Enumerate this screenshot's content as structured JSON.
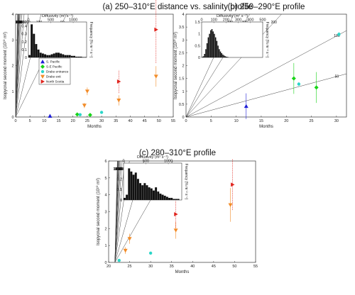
{
  "chart_data": [
    {
      "type": "scatter",
      "title": "(a) 250–310°E distance vs. salinity profile",
      "xlabel": "Months",
      "ylabel": "Isopycnal second moment (10¹⁰ m²)",
      "xlim": [
        0,
        55
      ],
      "ylim": [
        0,
        4
      ],
      "xticks": [
        "0",
        "5",
        "10",
        "15",
        "20",
        "25",
        "30",
        "35",
        "40",
        "45",
        "50",
        "55"
      ],
      "yticks": [
        "0",
        "1",
        "2",
        "3",
        "4"
      ],
      "diffusivity_contours": {
        "values": [
          50,
          100,
          200,
          300,
          400,
          500,
          600,
          700,
          800,
          900,
          1000,
          1100,
          1200,
          1300
        ],
        "labels": [
          "50",
          "100",
          "200",
          "300",
          "400",
          "500",
          "600",
          "700",
          "800",
          "900",
          "1000",
          "1100",
          "1200",
          "1300"
        ]
      },
      "legend": {
        "placement": "inside-left",
        "entries": [
          {
            "name": "S. Pacific",
            "color": "#1f1fd6",
            "marker": "triangle-up"
          },
          {
            "name": "S-E Pacific",
            "color": "#19d419",
            "marker": "diamond"
          },
          {
            "name": "Drake entrance",
            "color": "#2bd6c8",
            "marker": "circle"
          },
          {
            "name": "Drake exit",
            "color": "#f28c28",
            "marker": "triangle-down"
          },
          {
            "name": "North Scotia",
            "color": "#e0261f",
            "marker": "triangle-right"
          }
        ]
      },
      "series": [
        {
          "name": "S. Pacific",
          "color": "#1f1fd6",
          "marker": "triangle-up",
          "points": [
            {
              "x": 12,
              "y": 0.04,
              "err": 0.05
            }
          ]
        },
        {
          "name": "S-E Pacific",
          "color": "#19d419",
          "marker": "diamond",
          "points": [
            {
              "x": 21.5,
              "y": 0.1,
              "err": 0.05
            },
            {
              "x": 26,
              "y": 0.08,
              "err": 0.04
            }
          ]
        },
        {
          "name": "Drake entrance",
          "color": "#2bd6c8",
          "marker": "circle",
          "points": [
            {
              "x": 22.5,
              "y": 0.09,
              "err": 0.04
            },
            {
              "x": 30,
              "y": 0.18,
              "err": 0.05
            }
          ]
        },
        {
          "name": "Drake exit",
          "color": "#f28c28",
          "marker": "triangle-down",
          "points": [
            {
              "x": 24,
              "y": 0.45,
              "err": 0.1
            },
            {
              "x": 25,
              "y": 1.0,
              "err": 0.15
            },
            {
              "x": 36,
              "y": 0.65,
              "err": 0.2
            },
            {
              "x": 49,
              "y": 1.58,
              "err": 0.4
            }
          ]
        },
        {
          "name": "North Scotia",
          "color": "#e0261f",
          "marker": "triangle-right",
          "points": [
            {
              "x": 36,
              "y": 1.38,
              "err": 0.45
            },
            {
              "x": 49,
              "y": 3.4,
              "err": 1.3
            }
          ]
        }
      ],
      "inset": {
        "title": "Diffusivity (m² s⁻¹)",
        "top_ticks": [
          "0",
          "500",
          "1000"
        ],
        "ylabel": "Frequency (% m⁻² s⁻¹)",
        "yticks": [
          "0",
          "0.1",
          "0.2",
          "0.3",
          "0.4"
        ],
        "xlim": [
          0,
          1300
        ],
        "ylim": [
          0,
          0.45
        ],
        "bin_width": 50,
        "values": [
          0.03,
          0.42,
          0.3,
          0.17,
          0.1,
          0.06,
          0.05,
          0.04,
          0.03,
          0.03,
          0.04,
          0.05,
          0.06,
          0.06,
          0.05,
          0.04,
          0.03,
          0.03,
          0.03,
          0.02,
          0.02,
          0.01,
          0.01,
          0.01,
          0.005,
          0.005
        ]
      }
    },
    {
      "type": "scatter",
      "title": "(b) 250–290°E profile",
      "xlabel": "Months",
      "ylabel": "Isopycnal second moment (10¹⁰ m²)",
      "xlim": [
        0,
        32
      ],
      "ylim": [
        0,
        4
      ],
      "xticks": [
        "0",
        "5",
        "10",
        "15",
        "20",
        "25",
        "30"
      ],
      "yticks": [
        "0",
        "0.5",
        "1",
        "1.5",
        "2",
        "2.5",
        "3",
        "3.5",
        "4"
      ],
      "diffusivity_contours": {
        "values": [
          50,
          100,
          200,
          300,
          400
        ],
        "labels": [
          "50",
          "100",
          "200",
          "300",
          "400"
        ]
      },
      "series": [
        {
          "name": "S. Pacific",
          "color": "#1f1fd6",
          "marker": "triangle-up",
          "points": [
            {
              "x": 12,
              "y": 0.42,
              "err": 0.5
            }
          ]
        },
        {
          "name": "S-E Pacific",
          "color": "#19d419",
          "marker": "diamond",
          "points": [
            {
              "x": 21.5,
              "y": 1.5,
              "err": 0.6
            },
            {
              "x": 26,
              "y": 1.15,
              "err": 0.6
            }
          ]
        },
        {
          "name": "Drake entrance",
          "color": "#2bd6c8",
          "marker": "circle",
          "points": [
            {
              "x": 22.5,
              "y": 1.28,
              "err": 0.08
            },
            {
              "x": 30.5,
              "y": 3.22,
              "err": 0.08
            }
          ]
        }
      ],
      "inset": {
        "title": "Diffusivity (m² s⁻¹)",
        "top_ticks": [
          "0",
          "100",
          "200",
          "300",
          "400",
          "500"
        ],
        "ylabel": "Frequency (% m⁻² s⁻¹)",
        "yticks": [
          "0",
          "0.5",
          "1",
          "1.5"
        ],
        "xlim": [
          0,
          500
        ],
        "ylim": [
          0,
          1.5
        ],
        "bin_width": 10,
        "values": [
          0.02,
          0.05,
          0.15,
          0.35,
          0.6,
          0.85,
          1.0,
          1.15,
          1.2,
          1.1,
          1.0,
          0.85,
          0.7,
          0.5,
          0.35,
          0.25,
          0.18,
          0.12,
          0.08,
          0.05,
          0.03,
          0.02
        ]
      }
    },
    {
      "type": "scatter",
      "title": "(c) 280–310°E profile",
      "xlabel": "Months",
      "ylabel": "Isopycnal second moment (10¹⁰ m²)",
      "xlim": [
        20,
        55
      ],
      "ylim": [
        0,
        6
      ],
      "xticks": [
        "20",
        "25",
        "30",
        "35",
        "40",
        "45",
        "50",
        "55"
      ],
      "yticks": [
        "0",
        "1",
        "2",
        "3",
        "4",
        "5",
        "6"
      ],
      "diffusivity_contours": {
        "values": [
          50,
          100,
          200,
          300,
          400,
          500,
          600,
          700,
          800,
          900,
          1000,
          1100,
          1200
        ],
        "labels": [
          "50",
          "100",
          "200",
          "300",
          "400",
          "500",
          "600",
          "700",
          "800",
          "900",
          "1000",
          "1100",
          "1200"
        ]
      },
      "series": [
        {
          "name": "Drake entrance",
          "color": "#2bd6c8",
          "marker": "circle",
          "points": [
            {
              "x": 22.5,
              "y": 0.12,
              "err": 0.05
            },
            {
              "x": 30,
              "y": 0.55,
              "err": 0.08
            }
          ]
        },
        {
          "name": "Drake exit",
          "color": "#f28c28",
          "marker": "triangle-down",
          "points": [
            {
              "x": 24,
              "y": 0.7,
              "err": 0.2
            },
            {
              "x": 25,
              "y": 1.4,
              "err": 0.3
            },
            {
              "x": 36,
              "y": 1.9,
              "err": 0.5
            },
            {
              "x": 49,
              "y": 3.4,
              "err": 1.0
            }
          ]
        },
        {
          "name": "North Scotia",
          "color": "#e0261f",
          "marker": "triangle-right",
          "points": [
            {
              "x": 36,
              "y": 2.85,
              "err": 0.8
            },
            {
              "x": 49.5,
              "y": 4.6,
              "err": 1.5
            }
          ]
        }
      ],
      "inset": {
        "title": "Diffusivity (m² s⁻¹)",
        "top_ticks": [
          "0",
          "500",
          "1000"
        ],
        "ylabel": "Frequency (% m⁻² s⁻¹)",
        "yticks": [
          "0",
          "0.1",
          "0.2",
          "0.3"
        ],
        "xlim": [
          0,
          1300
        ],
        "ylim": [
          0,
          0.35
        ],
        "bin_width": 50,
        "values": [
          0.02,
          0.05,
          0.3,
          0.27,
          0.24,
          0.26,
          0.2,
          0.16,
          0.14,
          0.16,
          0.14,
          0.12,
          0.11,
          0.09,
          0.12,
          0.08,
          0.06,
          0.05,
          0.04,
          0.03,
          0.02,
          0.02,
          0.01,
          0.01,
          0.01
        ]
      }
    }
  ]
}
